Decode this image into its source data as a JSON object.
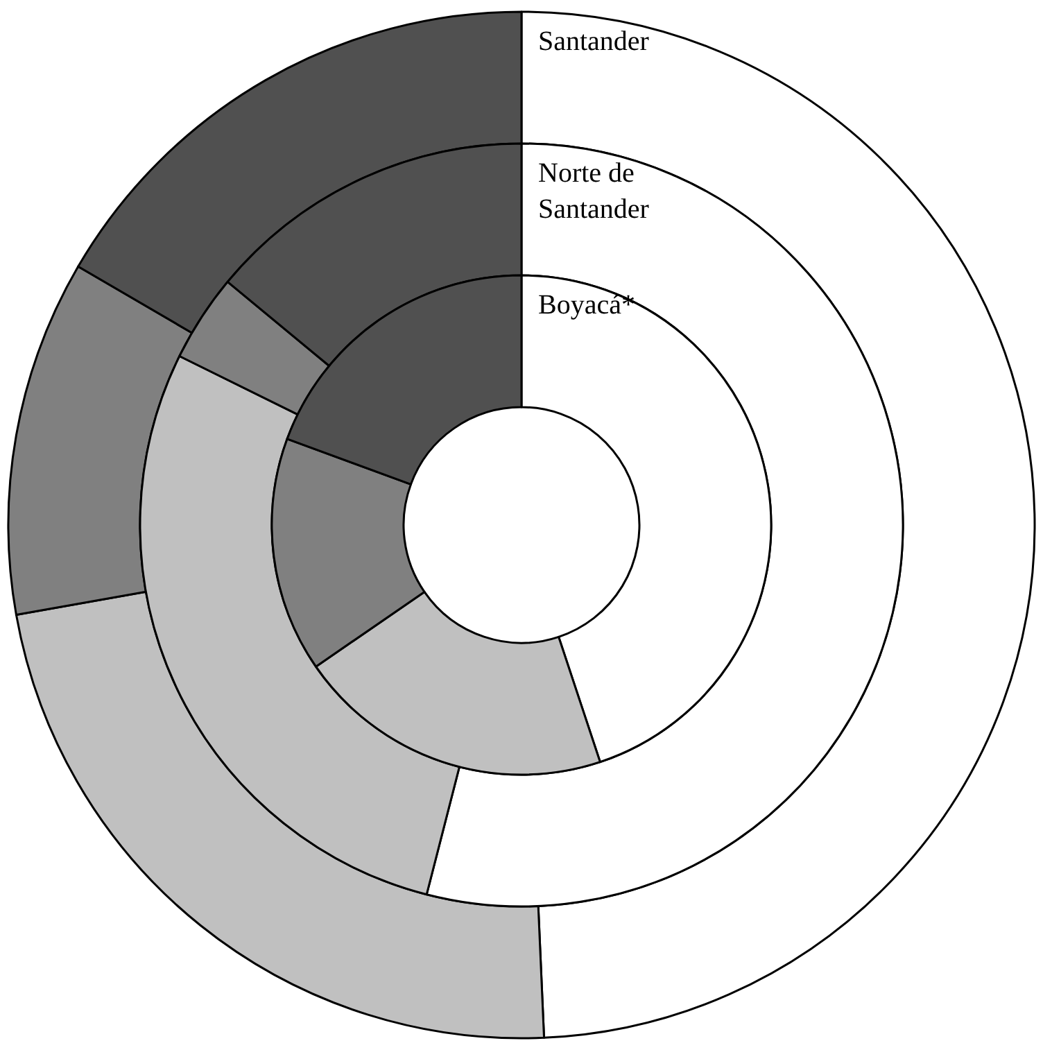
{
  "chart_data": {
    "type": "donut",
    "categories": [
      null,
      null,
      null,
      null
    ],
    "colors": [
      "#ffffff",
      "#c0c0c0",
      "#808080",
      "#505050"
    ],
    "series": [
      {
        "name": "Santander",
        "values": [
          49.3,
          22.9,
          11.2,
          16.6
        ]
      },
      {
        "name": "Norte de Santander",
        "values": [
          54.0,
          28.3,
          3.7,
          14.0
        ]
      },
      {
        "name": "Boyacá*",
        "values": [
          44.9,
          20.5,
          15.2,
          19.4
        ]
      }
    ]
  }
}
